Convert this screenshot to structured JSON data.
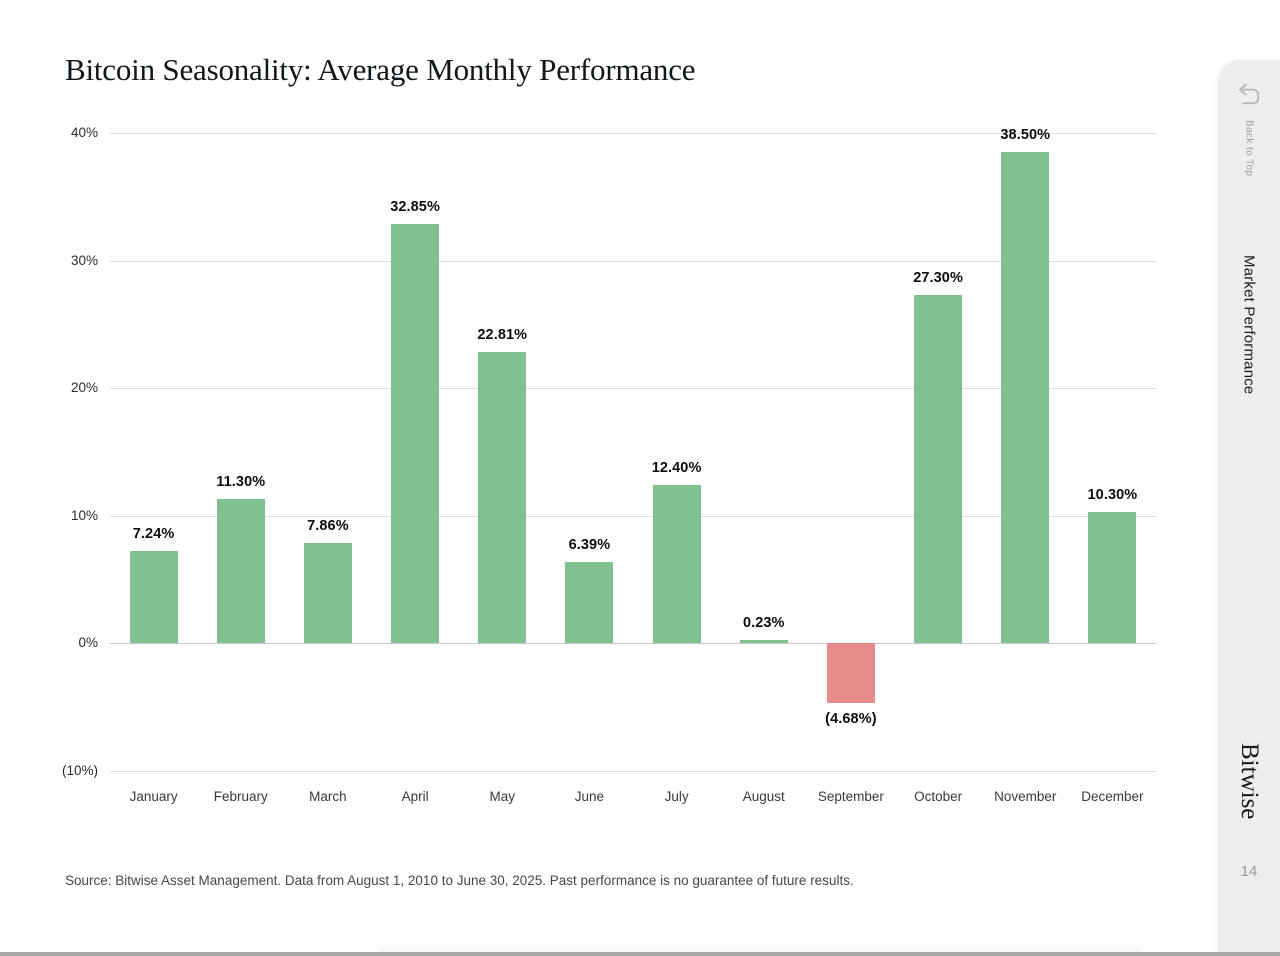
{
  "page": {
    "title": "Bitcoin Seasonality: Average Monthly Performance",
    "source_note": "Source: Bitwise Asset Management. Data from August 1, 2010 to June 30, 2025. Past performance is no guarantee of future results.",
    "page_number": "14"
  },
  "sidebar": {
    "back_to_top_label": "Back to Top",
    "back_icon": "return-arrow-icon",
    "section_label": "Market Performance",
    "brand": "Bitwise"
  },
  "chart_data": {
    "type": "bar",
    "title": "Bitcoin Seasonality: Average Monthly Performance",
    "categories": [
      "January",
      "February",
      "March",
      "April",
      "May",
      "June",
      "July",
      "August",
      "September",
      "October",
      "November",
      "December"
    ],
    "values": [
      7.24,
      11.3,
      7.86,
      32.85,
      22.81,
      6.39,
      12.4,
      0.23,
      -4.68,
      27.3,
      38.5,
      10.3
    ],
    "value_labels": [
      "7.24%",
      "11.30%",
      "7.86%",
      "32.85%",
      "22.81%",
      "6.39%",
      "12.40%",
      "0.23%",
      "(4.68%)",
      "27.30%",
      "38.50%",
      "10.30%"
    ],
    "xlabel": "",
    "ylabel": "",
    "ylim": [
      -10,
      40
    ],
    "yticks": [
      {
        "value": 40,
        "label": "40%"
      },
      {
        "value": 30,
        "label": "30%"
      },
      {
        "value": 20,
        "label": "20%"
      },
      {
        "value": 10,
        "label": "10%"
      },
      {
        "value": 0,
        "label": "0%"
      },
      {
        "value": -10,
        "label": "(10%)"
      }
    ],
    "grid": "horizontal",
    "legend": "none",
    "colors": {
      "positive": "#81c090",
      "negative": "#e78c8c"
    }
  }
}
